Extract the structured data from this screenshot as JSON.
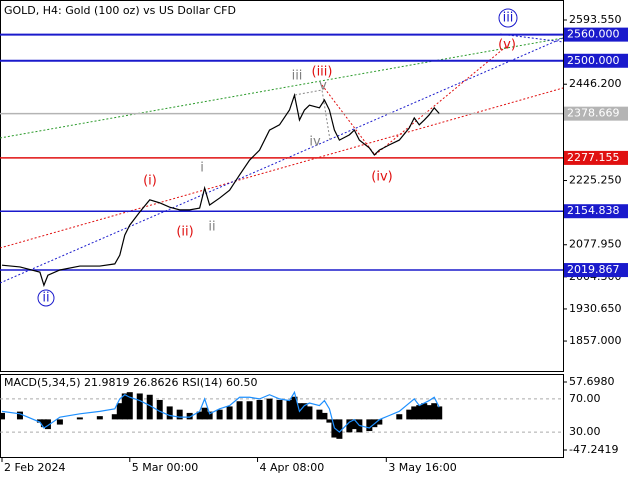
{
  "chart_data": [
    {
      "type": "line",
      "title": "GOLD, H4:  Gold (100 oz) vs US Dollar CFD",
      "x": [
        0.5,
        5,
        10,
        11,
        12,
        15,
        20,
        25,
        28.75,
        30,
        31.25,
        32.5,
        35,
        37.5,
        40,
        42.5,
        45,
        47.5,
        50,
        51.25,
        52.5,
        55,
        57.5,
        60,
        62.5,
        65,
        67.5,
        70,
        72.5,
        73.75,
        75,
        76.25,
        77.5,
        80,
        81.25,
        82.5,
        83.75,
        85,
        87.5,
        88.75,
        90,
        92.5,
        93.75,
        95,
        97.5,
        100,
        102.5,
        103.75,
        105,
        106.25,
        107.5,
        108.75,
        110
      ],
      "series": [
        {
          "color": "#000000",
          "values": [
            2031,
            2027,
            2015,
            1985,
            2008,
            2020,
            2029,
            2029,
            2034,
            2054,
            2100,
            2123,
            2153,
            2181,
            2174,
            2164,
            2158,
            2158,
            2162,
            2208,
            2169,
            2185,
            2203,
            2238,
            2272,
            2295,
            2341,
            2353,
            2387,
            2421,
            2364,
            2387,
            2398,
            2392,
            2410,
            2387,
            2341,
            2318,
            2330,
            2341,
            2318,
            2300,
            2284,
            2295,
            2307,
            2318,
            2346,
            2369,
            2353,
            2364,
            2376,
            2392,
            2379
          ]
        }
      ],
      "xlim": [
        0,
        141
      ],
      "xticks": [
        {
          "value": 0.5,
          "label": "2 Feb 2024"
        },
        {
          "value": 32.5,
          "label": "5 Mar 00:00"
        },
        {
          "value": 64.5,
          "label": "4 Apr 08:00"
        },
        {
          "value": 96.75,
          "label": "3 May 16:00"
        }
      ],
      "ylim": [
        1786,
        2639.4
      ],
      "yticks": [
        {
          "value": 2593.55,
          "label": "2593.550"
        },
        {
          "value": 2446.2,
          "label": "2446.200"
        },
        {
          "value": 2225.25,
          "label": "2225.250"
        },
        {
          "value": 2077.95,
          "label": "2077.950"
        },
        {
          "value": 2004.3,
          "label": "2004.300"
        },
        {
          "value": 1930.65,
          "label": "1930.650"
        },
        {
          "value": 1857,
          "label": "1857.000"
        }
      ],
      "levels": [
        {
          "value": 2560,
          "label": "2560.000",
          "color": "#1a1acc"
        },
        {
          "value": 2500,
          "label": "2500.000",
          "color": "#1a1acc"
        },
        {
          "value": 2378.669,
          "color": "#b4b4b4"
        },
        {
          "value": 2277.155,
          "color": "#e01010"
        },
        {
          "value": 2154.838,
          "color": "#1a1acc"
        },
        {
          "value": 2019.867,
          "color": "#1a1acc"
        }
      ],
      "annotations": [
        "iii",
        "(iii)",
        "v",
        "iv",
        "(iv)",
        "i",
        "ii",
        "(i)",
        "(ii)",
        "ii",
        "iii",
        "(v)"
      ]
    },
    {
      "type": "bar",
      "title": "MACD(5,34,5) 21.9819 26.8626 RSI(14) 60.50",
      "x": [
        0.5,
        5,
        10,
        11,
        12,
        15,
        20,
        25,
        28.75,
        30,
        31.25,
        32.5,
        35,
        37.5,
        40,
        42.5,
        45,
        47.5,
        50,
        51.25,
        52.5,
        55,
        57.5,
        60,
        62.5,
        65,
        67.5,
        70,
        72.5,
        73.75,
        75,
        76.25,
        77.5,
        80,
        81.25,
        82.5,
        83.75,
        85,
        87.5,
        88.75,
        90,
        92.5,
        93.75,
        95,
        97.5,
        100,
        102.5,
        103.75,
        105,
        106.25,
        107.5,
        108.75,
        110
      ],
      "series": [
        {
          "color": "#000000",
          "values": [
            10,
            12,
            -5,
            -12,
            -15,
            -8,
            3,
            5,
            8,
            25,
            40,
            42,
            40,
            38,
            30,
            20,
            15,
            10,
            12,
            18,
            12,
            15,
            20,
            28,
            28,
            30,
            32,
            30,
            30,
            35,
            25,
            25,
            20,
            15,
            10,
            -5,
            -28,
            -30,
            -20,
            -15,
            -20,
            -18,
            -12,
            -8,
            0,
            8,
            15,
            20,
            22,
            25,
            22,
            25,
            20
          ]
        },
        {
          "color": "#1e90ff",
          "axis": "y2",
          "values": [
            55,
            52,
            42,
            35,
            38,
            48,
            52,
            55,
            58,
            70,
            75,
            72,
            68,
            62,
            55,
            50,
            48,
            48,
            55,
            70,
            52,
            58,
            62,
            72,
            72,
            70,
            75,
            70,
            68,
            78,
            55,
            62,
            65,
            62,
            68,
            58,
            35,
            30,
            42,
            45,
            38,
            35,
            40,
            45,
            50,
            55,
            65,
            70,
            62,
            65,
            68,
            72,
            60
          ]
        }
      ],
      "xlim": [
        0,
        141
      ],
      "ylim": [
        -58.05,
        70.05
      ],
      "yticks": [
        {
          "value": 57.698,
          "label": "57.6980"
        },
        {
          "value": -47.2419,
          "label": "-47.2419"
        }
      ],
      "y2lim": [
        0,
        100
      ],
      "y2ticks": [
        {
          "value": 70,
          "label": "70.00"
        },
        {
          "value": 30,
          "label": "30.00"
        }
      ]
    }
  ]
}
